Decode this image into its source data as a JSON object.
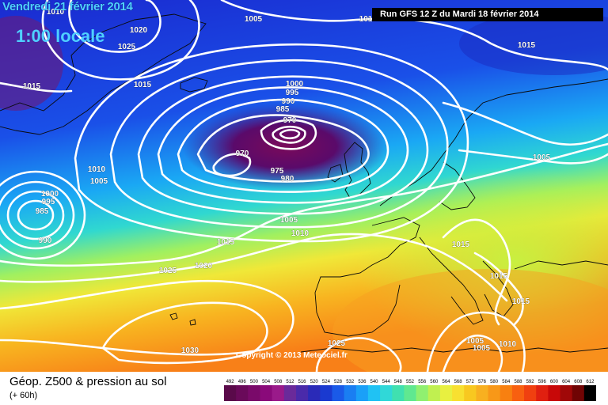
{
  "header": {
    "date": "Vendredi 21 février 2014",
    "time": "1:00 locale",
    "run": "Run GFS 12 Z du Mardi 18 février 2014"
  },
  "copyright": "Copyright © 2013 Meteociel.fr",
  "footer": {
    "title": "Géop. Z500 & pression au sol",
    "subtitle": "(+ 60h)"
  },
  "legend": {
    "values": [
      492,
      496,
      500,
      504,
      508,
      512,
      516,
      520,
      524,
      528,
      532,
      536,
      540,
      544,
      548,
      552,
      556,
      560,
      564,
      568,
      572,
      576,
      580,
      584,
      588,
      592,
      596,
      600,
      604,
      608,
      612
    ],
    "colors": [
      "#5a0a4a",
      "#6a0a5a",
      "#7a0a6a",
      "#8a0a7a",
      "#9a1a8a",
      "#6a2a9a",
      "#4a2aaa",
      "#2a2ab8",
      "#1a3ad0",
      "#1a5ae8",
      "#1a7ef2",
      "#1aa0f8",
      "#20c2f4",
      "#30d8d8",
      "#40e0b0",
      "#60e890",
      "#90f070",
      "#c0f050",
      "#e8f040",
      "#f8e030",
      "#f8c820",
      "#f8b020",
      "#f89818",
      "#f88010",
      "#f86010",
      "#f04010",
      "#e02010",
      "#c80808",
      "#a00808",
      "#700404",
      "#000000"
    ]
  },
  "pressure_labels": [
    {
      "text": "1010"
    },
    {
      "text": "1005"
    },
    {
      "text": "1020"
    },
    {
      "text": "1025"
    },
    {
      "text": "1015"
    },
    {
      "text": "1015"
    },
    {
      "text": "1015"
    },
    {
      "text": "101"
    },
    {
      "text": "1000"
    },
    {
      "text": "995"
    },
    {
      "text": "990"
    },
    {
      "text": "985"
    },
    {
      "text": "970"
    },
    {
      "text": "975"
    },
    {
      "text": "980"
    },
    {
      "text": "970"
    },
    {
      "text": "1005"
    },
    {
      "text": "1010"
    },
    {
      "text": "1015"
    },
    {
      "text": "1020"
    },
    {
      "text": "1025"
    },
    {
      "text": "1010"
    },
    {
      "text": "1005"
    },
    {
      "text": "1000"
    },
    {
      "text": "995"
    },
    {
      "text": "985"
    },
    {
      "text": "990"
    },
    {
      "text": "1005"
    },
    {
      "text": "1015"
    },
    {
      "text": "1015"
    },
    {
      "text": "1015"
    },
    {
      "text": "1030"
    },
    {
      "text": "1025"
    },
    {
      "text": "1005"
    },
    {
      "text": "1005"
    },
    {
      "text": "1010"
    }
  ]
}
